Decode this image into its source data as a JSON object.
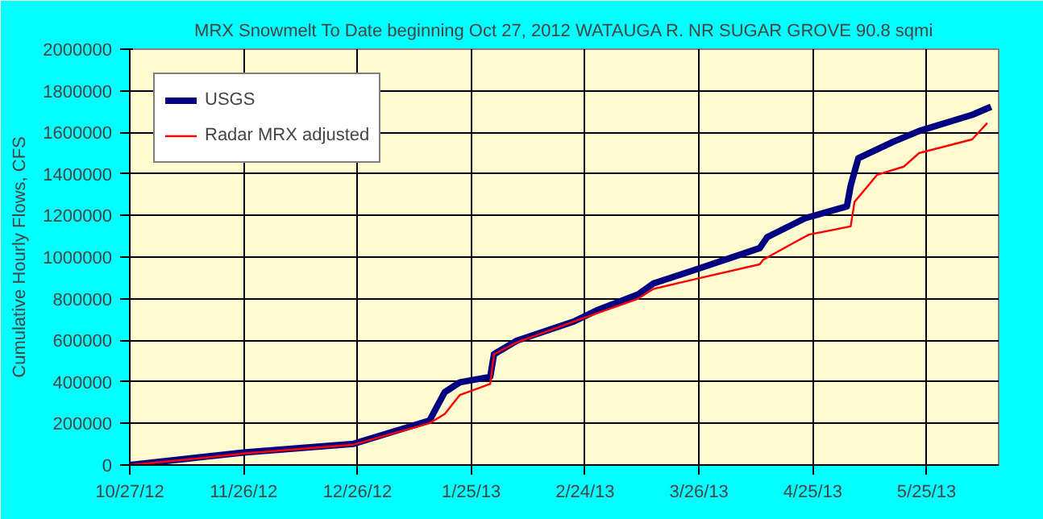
{
  "chart_data": {
    "type": "line",
    "title": "MRX Snowmelt To Date beginning Oct 27, 2012 WATAUGA R. NR SUGAR GROVE 90.8 sqmi",
    "ylabel": "Cumulative Hourly Flows, CFS",
    "xlim": [
      "2012-10-27",
      "2013-06-13"
    ],
    "xticks": [
      {
        "value": "2012-10-27",
        "label": "10/27/12"
      },
      {
        "value": "2012-11-26",
        "label": "11/26/12"
      },
      {
        "value": "2012-12-26",
        "label": "12/26/12"
      },
      {
        "value": "2013-01-25",
        "label": "1/25/13"
      },
      {
        "value": "2013-02-24",
        "label": "2/24/13"
      },
      {
        "value": "2013-03-26",
        "label": "3/26/13"
      },
      {
        "value": "2013-04-25",
        "label": "4/25/13"
      },
      {
        "value": "2013-05-25",
        "label": "5/25/13"
      }
    ],
    "ylim": [
      0,
      2000000
    ],
    "yticks": [
      0,
      200000,
      400000,
      600000,
      800000,
      1000000,
      1200000,
      1400000,
      1600000,
      1800000,
      2000000
    ],
    "grid": true,
    "legend": "top left",
    "series": [
      {
        "name": "USGS",
        "color": "#000080",
        "x": [
          "2012-10-27",
          "2012-11-11",
          "2012-11-26",
          "2012-12-25",
          "2013-01-14",
          "2013-01-18",
          "2013-01-22",
          "2013-01-30",
          "2013-01-31",
          "2013-02-06",
          "2013-02-21",
          "2013-02-27",
          "2013-03-10",
          "2013-03-14",
          "2013-03-25",
          "2013-04-11",
          "2013-04-13",
          "2013-04-23",
          "2013-05-04",
          "2013-05-05",
          "2013-05-07",
          "2013-05-16",
          "2013-05-23",
          "2013-06-06",
          "2013-06-11"
        ],
        "values": [
          0,
          30000,
          60000,
          102000,
          214000,
          350000,
          398000,
          424000,
          533000,
          598000,
          690000,
          743000,
          821000,
          873000,
          939000,
          1043000,
          1096000,
          1187000,
          1244000,
          1344000,
          1475000,
          1553000,
          1606000,
          1684000,
          1723000
        ]
      },
      {
        "name": "Radar MRX adjusted",
        "color": "#ff0000",
        "x": [
          "2012-10-27",
          "2012-11-11",
          "2012-11-26",
          "2012-12-25",
          "2013-01-14",
          "2013-01-18",
          "2013-01-22",
          "2013-01-30",
          "2013-01-31",
          "2013-02-06",
          "2013-02-23",
          "2013-03-10",
          "2013-03-14",
          "2013-03-25",
          "2013-04-11",
          "2013-04-12",
          "2013-04-20",
          "2013-04-24",
          "2013-05-05",
          "2013-05-06",
          "2013-05-12",
          "2013-05-19",
          "2013-05-23",
          "2013-06-06",
          "2013-06-10"
        ],
        "values": [
          0,
          26000,
          55000,
          98000,
          201000,
          245000,
          337000,
          390000,
          533000,
          590000,
          703000,
          800000,
          847000,
          894000,
          965000,
          988000,
          1069000,
          1108000,
          1148000,
          1265000,
          1396000,
          1435000,
          1500000,
          1566000,
          1645000
        ]
      }
    ]
  }
}
